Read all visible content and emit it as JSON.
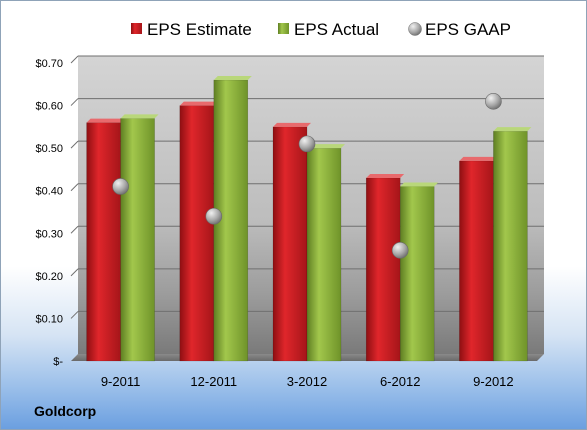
{
  "company": "Goldcorp",
  "chart_data": {
    "type": "bar",
    "categories": [
      "9-2011",
      "12-2011",
      "3-2012",
      "6-2012",
      "9-2012"
    ],
    "series": [
      {
        "name": "EPS Estimate",
        "kind": "bar",
        "color": "#c0171c",
        "values": [
          0.56,
          0.6,
          0.55,
          0.43,
          0.47
        ]
      },
      {
        "name": "EPS Actual",
        "kind": "bar",
        "color": "#8cb33a",
        "values": [
          0.57,
          0.66,
          0.5,
          0.41,
          0.54
        ]
      },
      {
        "name": "EPS GAAP",
        "kind": "scatter",
        "color": "#a9a9a9",
        "values": [
          0.41,
          0.34,
          0.51,
          0.26,
          0.61
        ]
      }
    ],
    "y_ticks": [
      {
        "value": 0.7,
        "label": "$0.70"
      },
      {
        "value": 0.6,
        "label": "$0.60"
      },
      {
        "value": 0.5,
        "label": "$0.50"
      },
      {
        "value": 0.4,
        "label": "$0.40"
      },
      {
        "value": 0.3,
        "label": "$0.30"
      },
      {
        "value": 0.2,
        "label": "$0.20"
      },
      {
        "value": 0.1,
        "label": "$0.10"
      },
      {
        "value": 0.0,
        "label": "$-"
      }
    ],
    "ylim": [
      0,
      0.7
    ],
    "grid": true,
    "legend_position": "top"
  }
}
